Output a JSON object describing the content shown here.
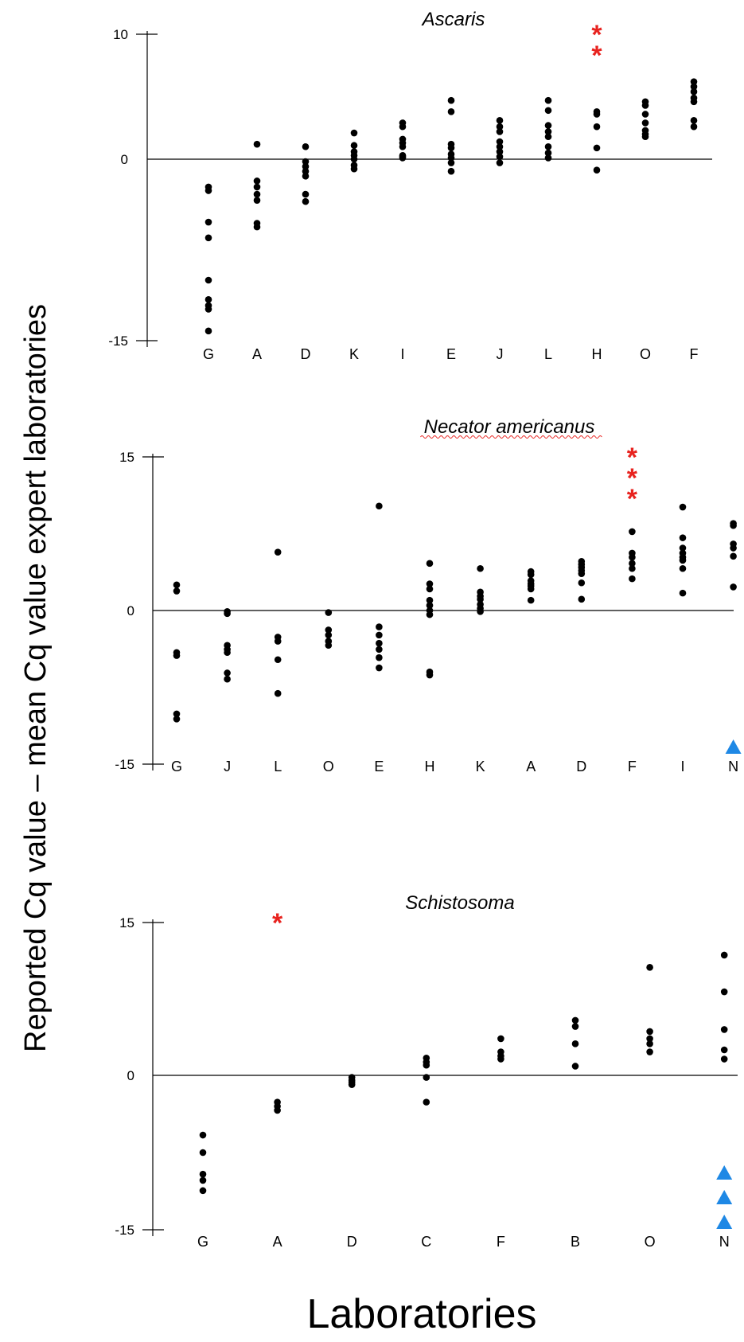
{
  "figure": {
    "ylabel": "Reported Cq value – mean Cq value expert laboratories",
    "xlabel": "Laboratories",
    "colors": {
      "dot": "#000000",
      "star": "#e8231f",
      "triangle": "#1e88e5",
      "axis": "#000000"
    },
    "marker_legend": {
      "star": "red asterisk",
      "triangle": "blue triangle"
    }
  },
  "chart_data": [
    {
      "type": "scatter",
      "title": "Ascaris",
      "title_underline": false,
      "ylim": [
        -15,
        10
      ],
      "yticks": [
        -15,
        0,
        10
      ],
      "grid": false,
      "categories": [
        "G",
        "A",
        "D",
        "K",
        "I",
        "E",
        "J",
        "L",
        "H",
        "O",
        "F"
      ],
      "points": [
        {
          "category": "G",
          "values": [
            -2.3,
            -2.6,
            -5.2,
            -6.5,
            -10.0,
            -11.6,
            -12.1,
            -12.4,
            -14.2
          ]
        },
        {
          "category": "A",
          "values": [
            1.2,
            -1.8,
            -2.3,
            -2.9,
            -3.4,
            -5.3,
            -5.6
          ]
        },
        {
          "category": "D",
          "values": [
            1.0,
            -0.2,
            -0.6,
            -1.0,
            -1.4,
            -2.9,
            -3.5
          ]
        },
        {
          "category": "K",
          "values": [
            2.1,
            1.1,
            0.6,
            0.3,
            0.0,
            -0.5,
            -0.8
          ]
        },
        {
          "category": "I",
          "values": [
            2.9,
            2.6,
            1.6,
            1.3,
            1.0,
            0.3,
            0.2,
            0.1
          ]
        },
        {
          "category": "E",
          "values": [
            4.7,
            3.8,
            1.2,
            0.9,
            0.4,
            0.1,
            -0.3,
            -1.0
          ]
        },
        {
          "category": "J",
          "values": [
            3.1,
            2.6,
            2.2,
            1.4,
            1.0,
            0.6,
            0.2,
            -0.3
          ]
        },
        {
          "category": "L",
          "values": [
            4.7,
            3.9,
            2.7,
            2.2,
            1.8,
            1.0,
            0.5,
            0.1
          ]
        },
        {
          "category": "H",
          "values": [
            3.8,
            3.6,
            2.6,
            0.9,
            -0.9
          ]
        },
        {
          "category": "O",
          "values": [
            4.6,
            4.3,
            3.6,
            2.9,
            2.3,
            2.0,
            1.8
          ]
        },
        {
          "category": "F",
          "values": [
            6.2,
            5.8,
            5.4,
            4.9,
            4.6,
            3.1,
            2.6
          ]
        }
      ],
      "stars": [
        {
          "category": "H",
          "count": 2
        }
      ],
      "triangles": []
    },
    {
      "type": "scatter",
      "title": "Necator americanus",
      "title_underline": true,
      "ylim": [
        -15,
        15
      ],
      "yticks": [
        -15,
        0,
        15
      ],
      "grid": false,
      "categories": [
        "G",
        "J",
        "L",
        "O",
        "E",
        "H",
        "K",
        "A",
        "D",
        "F",
        "I",
        "N"
      ],
      "points": [
        {
          "category": "G",
          "values": [
            2.5,
            1.9,
            -4.1,
            -4.4,
            -10.1,
            -10.6
          ]
        },
        {
          "category": "J",
          "values": [
            -0.1,
            -0.3,
            -3.4,
            -3.8,
            -4.1,
            -6.1,
            -6.7
          ]
        },
        {
          "category": "L",
          "values": [
            5.7,
            -2.6,
            -3.0,
            -4.8,
            -8.1
          ]
        },
        {
          "category": "O",
          "values": [
            -0.2,
            -1.9,
            -2.4,
            -3.0,
            -3.4
          ]
        },
        {
          "category": "E",
          "values": [
            10.2,
            -1.6,
            -2.4,
            -3.2,
            -3.8,
            -4.6,
            -5.6
          ]
        },
        {
          "category": "H",
          "values": [
            4.6,
            2.6,
            2.1,
            1.0,
            0.5,
            0.0,
            -0.4,
            -6.0,
            -6.3
          ]
        },
        {
          "category": "K",
          "values": [
            4.1,
            1.8,
            1.4,
            1.1,
            0.6,
            0.2,
            -0.1
          ]
        },
        {
          "category": "A",
          "values": [
            3.8,
            3.5,
            2.9,
            2.6,
            2.4,
            2.1,
            1.0
          ]
        },
        {
          "category": "D",
          "values": [
            4.8,
            4.5,
            4.2,
            3.9,
            3.6,
            2.7,
            1.1
          ]
        },
        {
          "category": "F",
          "values": [
            7.7,
            5.6,
            5.2,
            4.6,
            4.1,
            3.1
          ]
        },
        {
          "category": "I",
          "values": [
            10.1,
            7.1,
            6.1,
            5.6,
            5.2,
            4.9,
            4.1,
            1.7
          ]
        },
        {
          "category": "N",
          "values": [
            8.5,
            8.3,
            6.5,
            6.1,
            5.3,
            2.3
          ]
        }
      ],
      "stars": [
        {
          "category": "F",
          "count": 3
        }
      ],
      "triangles": [
        {
          "category": "N",
          "count": 1
        }
      ]
    },
    {
      "type": "scatter",
      "title": "Schistosoma",
      "title_underline": false,
      "ylim": [
        -15,
        15
      ],
      "yticks": [
        -15,
        0,
        15
      ],
      "grid": false,
      "categories": [
        "G",
        "A",
        "D",
        "C",
        "F",
        "B",
        "O",
        "N"
      ],
      "points": [
        {
          "category": "G",
          "values": [
            -5.8,
            -7.5,
            -9.6,
            -10.2,
            -11.2
          ]
        },
        {
          "category": "A",
          "values": [
            -2.6,
            -3.0,
            -3.4
          ]
        },
        {
          "category": "D",
          "values": [
            -0.2,
            -0.5,
            -0.7,
            -0.9
          ]
        },
        {
          "category": "C",
          "values": [
            1.7,
            1.3,
            1.0,
            -0.2,
            -2.6
          ]
        },
        {
          "category": "F",
          "values": [
            3.6,
            2.3,
            1.9,
            1.6
          ]
        },
        {
          "category": "B",
          "values": [
            5.4,
            4.8,
            3.1,
            0.9
          ]
        },
        {
          "category": "O",
          "values": [
            10.6,
            4.3,
            3.6,
            3.1,
            2.3
          ]
        },
        {
          "category": "N",
          "values": [
            11.8,
            8.2,
            4.5,
            2.5,
            1.6
          ]
        }
      ],
      "stars": [
        {
          "category": "A",
          "count": 1
        }
      ],
      "triangles": [
        {
          "category": "N",
          "count": 3
        }
      ]
    }
  ]
}
